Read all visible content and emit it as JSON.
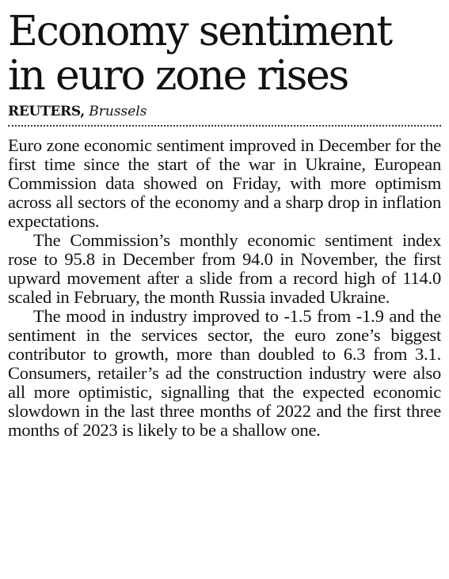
{
  "article": {
    "headline_line1": "Economy sentiment",
    "headline_line2": "in euro zone rises",
    "byline_agency": "REUTERS,",
    "byline_place": "Brussels",
    "paragraphs": [
      "Euro zone economic sentiment improved in December for the first time since the start of the war in Ukraine, European Commission data showed on Friday, with more optimism across all sectors of the economy and a sharp drop in inflation expectations.",
      "The Commission’s monthly economic sentiment index rose to 95.8 in December from 94.0 in November, the first upward movement after a slide from a record high of 114.0 scaled in February, the month Russia invaded Ukraine.",
      "The mood in industry improved to -1.5 from -1.9 and the sentiment in the services sector, the euro zone’s biggest contributor to growth, more than doubled to 6.3 from 3.1. Consumers, retailer’s ad the construction industry were also all more optimistic, signalling that the expected economic slowdown in the last three months of 2022 and the first three months of 2023 is likely to be a shallow one."
    ]
  }
}
